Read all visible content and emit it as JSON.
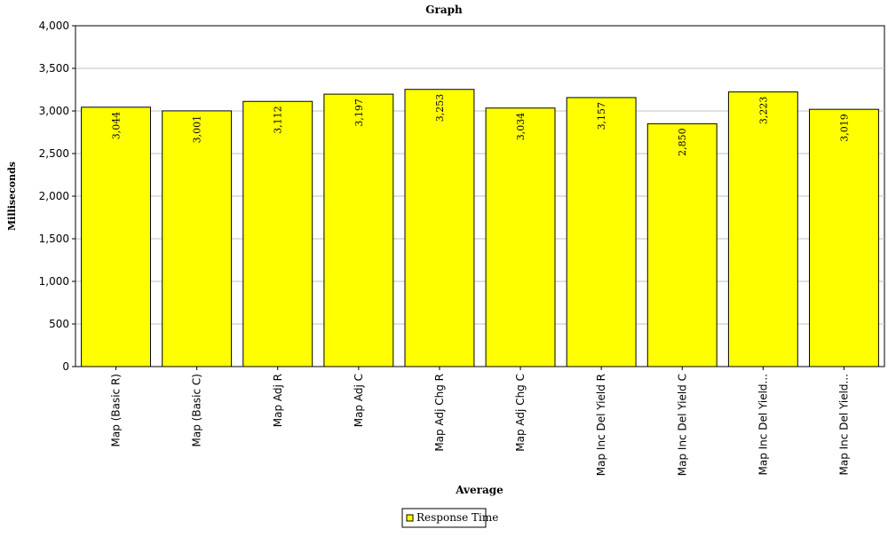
{
  "chart_data": {
    "type": "bar",
    "title": "Graph",
    "xlabel": "Average",
    "ylabel": "Milliseconds",
    "ylim": [
      0,
      4000
    ],
    "yticks": [
      0,
      500,
      1000,
      1500,
      2000,
      2500,
      3000,
      3500,
      4000
    ],
    "ytick_labels": [
      "0",
      "500",
      "1,000",
      "1,500",
      "2,000",
      "2,500",
      "3,000",
      "3,500",
      "4,000"
    ],
    "grid": true,
    "legend_position": "bottom-center",
    "categories": [
      "Map (Basic R)",
      "Map (Basic C)",
      "Map Adj R",
      "Map Adj C",
      "Map Adj Chg R",
      "Map Adj Chg C",
      "Map Inc Del Yield R",
      "Map Inc Del Yield C",
      "Map Inc Del Yield...",
      "Map Inc Del Yield..."
    ],
    "series": [
      {
        "name": "Response Time",
        "color": "#ffff00",
        "values": [
          3044,
          3001,
          3112,
          3197,
          3253,
          3034,
          3157,
          2850,
          3223,
          3019
        ],
        "value_labels": [
          "3,044",
          "3,001",
          "3,112",
          "3,197",
          "3,253",
          "3,034",
          "3,157",
          "2,850",
          "3,223",
          "3,019"
        ]
      }
    ]
  }
}
